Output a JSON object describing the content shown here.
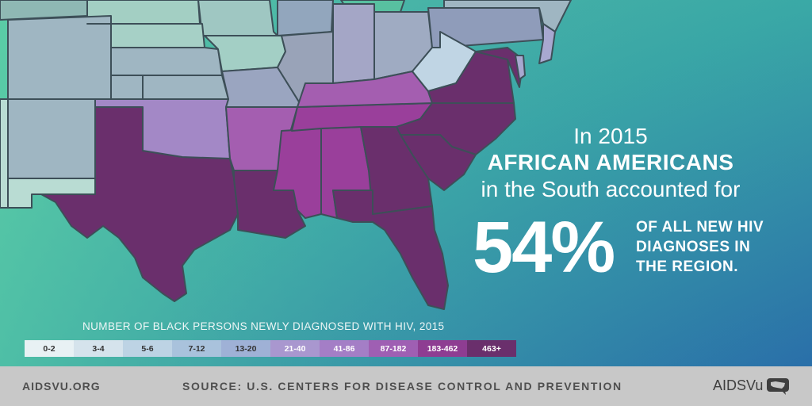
{
  "headline": {
    "line1": "In 2015",
    "line2": "AFRICAN AMERICANS",
    "line3": "in the South accounted for"
  },
  "stat": {
    "value": "54%",
    "line1": "OF ALL NEW HIV",
    "line2": "DIAGNOSES IN",
    "line3": "THE REGION."
  },
  "legend": {
    "title": "NUMBER OF BLACK PERSONS NEWLY DIAGNOSED WITH HIV, 2015",
    "bins": [
      {
        "label": "0-2",
        "color": "#e8f1f4",
        "text": "#333333"
      },
      {
        "label": "3-4",
        "color": "#d5e3ec",
        "text": "#333333"
      },
      {
        "label": "5-6",
        "color": "#bdd3e4",
        "text": "#333333"
      },
      {
        "label": "7-12",
        "color": "#a9c2dc",
        "text": "#333333"
      },
      {
        "label": "13-20",
        "color": "#9fb1d6",
        "text": "#333333"
      },
      {
        "label": "21-40",
        "color": "#a997cf",
        "text": "#ffffff"
      },
      {
        "label": "41-86",
        "color": "#a47ec6",
        "text": "#ffffff"
      },
      {
        "label": "87-182",
        "color": "#9f5fb3",
        "text": "#ffffff"
      },
      {
        "label": "183-462",
        "color": "#8e3d92",
        "text": "#ffffff"
      },
      {
        "label": "463+",
        "color": "#6a2f6c",
        "text": "#ffffff"
      }
    ]
  },
  "footer": {
    "site": "AIDSVU.ORG",
    "source": "SOURCE: U.S. CENTERS FOR DISEASE CONTROL AND PREVENTION",
    "brand": "AIDSVu",
    "brand_icon": "us-map-speech-bubble-icon"
  },
  "map_colors": {
    "dark": "#6a2f6c",
    "magenta": "#9a3f9b",
    "mid": "#a45eb0",
    "violet": "#a388c6",
    "light": "#c0d5e4",
    "greyblue": "#9aaac0",
    "teal": "#9cc8c0",
    "tealLight": "#b9dcd3",
    "border": "#3d4f58"
  }
}
